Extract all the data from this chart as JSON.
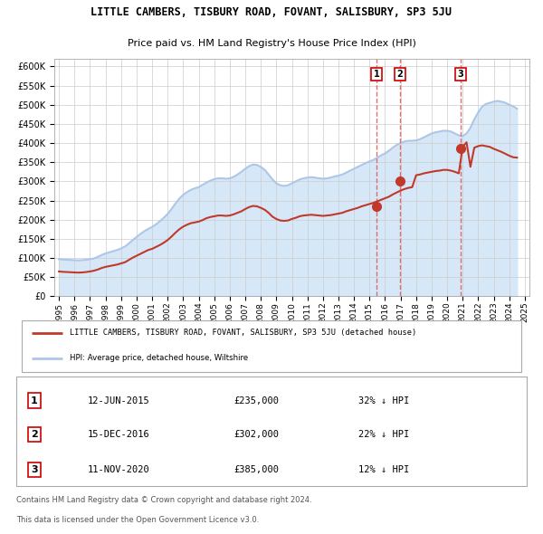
{
  "title": "LITTLE CAMBERS, TISBURY ROAD, FOVANT, SALISBURY, SP3 5JU",
  "subtitle": "Price paid vs. HM Land Registry's House Price Index (HPI)",
  "legend_line1": "LITTLE CAMBERS, TISBURY ROAD, FOVANT, SALISBURY, SP3 5JU (detached house)",
  "legend_line2": "HPI: Average price, detached house, Wiltshire",
  "footer1": "Contains HM Land Registry data © Crown copyright and database right 2024.",
  "footer2": "This data is licensed under the Open Government Licence v3.0.",
  "transactions": [
    {
      "num": "1",
      "date": "12-JUN-2015",
      "price": "£235,000",
      "pct": "32% ↓ HPI",
      "year": 2015.45,
      "price_val": 235000
    },
    {
      "num": "2",
      "date": "15-DEC-2016",
      "price": "£302,000",
      "pct": "22% ↓ HPI",
      "year": 2016.96,
      "price_val": 302000
    },
    {
      "num": "3",
      "date": "11-NOV-2020",
      "price": "£385,000",
      "pct": "12% ↓ HPI",
      "year": 2020.87,
      "price_val": 385000
    }
  ],
  "ylim": [
    0,
    620000
  ],
  "yticks": [
    0,
    50000,
    100000,
    150000,
    200000,
    250000,
    300000,
    350000,
    400000,
    450000,
    500000,
    550000,
    600000
  ],
  "xlim": [
    1994.7,
    2025.3
  ],
  "hpi_color": "#aec6e8",
  "hpi_fill": "#d6e8f7",
  "price_color": "#c0392b",
  "vline_color": "#e06060",
  "marker_color": "#c0392b",
  "hpi_data_years": [
    1995.0,
    1995.25,
    1995.5,
    1995.75,
    1996.0,
    1996.25,
    1996.5,
    1996.75,
    1997.0,
    1997.25,
    1997.5,
    1997.75,
    1998.0,
    1998.25,
    1998.5,
    1998.75,
    1999.0,
    1999.25,
    1999.5,
    1999.75,
    2000.0,
    2000.25,
    2000.5,
    2000.75,
    2001.0,
    2001.25,
    2001.5,
    2001.75,
    2002.0,
    2002.25,
    2002.5,
    2002.75,
    2003.0,
    2003.25,
    2003.5,
    2003.75,
    2004.0,
    2004.25,
    2004.5,
    2004.75,
    2005.0,
    2005.25,
    2005.5,
    2005.75,
    2006.0,
    2006.25,
    2006.5,
    2006.75,
    2007.0,
    2007.25,
    2007.5,
    2007.75,
    2008.0,
    2008.25,
    2008.5,
    2008.75,
    2009.0,
    2009.25,
    2009.5,
    2009.75,
    2010.0,
    2010.25,
    2010.5,
    2010.75,
    2011.0,
    2011.25,
    2011.5,
    2011.75,
    2012.0,
    2012.25,
    2012.5,
    2012.75,
    2013.0,
    2013.25,
    2013.5,
    2013.75,
    2014.0,
    2014.25,
    2014.5,
    2014.75,
    2015.0,
    2015.25,
    2015.5,
    2015.75,
    2016.0,
    2016.25,
    2016.5,
    2016.75,
    2017.0,
    2017.25,
    2017.5,
    2017.75,
    2018.0,
    2018.25,
    2018.5,
    2018.75,
    2019.0,
    2019.25,
    2019.5,
    2019.75,
    2020.0,
    2020.25,
    2020.5,
    2020.75,
    2021.0,
    2021.25,
    2021.5,
    2021.75,
    2022.0,
    2022.25,
    2022.5,
    2022.75,
    2023.0,
    2023.25,
    2023.5,
    2023.75,
    2024.0,
    2024.25,
    2024.5
  ],
  "hpi_data_values": [
    97000,
    96000,
    95500,
    95000,
    94500,
    94000,
    94500,
    95500,
    97000,
    99000,
    103000,
    108000,
    112000,
    115000,
    118000,
    121000,
    125000,
    130000,
    138000,
    147000,
    155000,
    163000,
    170000,
    176000,
    181000,
    188000,
    196000,
    205000,
    215000,
    228000,
    242000,
    255000,
    265000,
    272000,
    278000,
    282000,
    285000,
    291000,
    297000,
    302000,
    306000,
    308000,
    308000,
    307000,
    308000,
    312000,
    318000,
    325000,
    333000,
    340000,
    344000,
    343000,
    338000,
    330000,
    318000,
    305000,
    295000,
    290000,
    288000,
    290000,
    295000,
    300000,
    305000,
    308000,
    310000,
    311000,
    310000,
    308000,
    307000,
    308000,
    310000,
    313000,
    315000,
    318000,
    323000,
    328000,
    333000,
    338000,
    343000,
    348000,
    352000,
    356000,
    362000,
    368000,
    373000,
    380000,
    388000,
    395000,
    400000,
    404000,
    406000,
    406000,
    407000,
    410000,
    415000,
    420000,
    425000,
    428000,
    430000,
    432000,
    432000,
    430000,
    425000,
    420000,
    418000,
    425000,
    440000,
    462000,
    480000,
    495000,
    502000,
    505000,
    508000,
    510000,
    508000,
    505000,
    500000,
    496000,
    490000
  ],
  "price_data_years": [
    1995.0,
    1995.25,
    1995.5,
    1995.75,
    1996.0,
    1996.25,
    1996.5,
    1996.75,
    1997.0,
    1997.25,
    1997.5,
    1997.75,
    1998.0,
    1998.25,
    1998.5,
    1998.75,
    1999.0,
    1999.25,
    1999.5,
    1999.75,
    2000.0,
    2000.25,
    2000.5,
    2000.75,
    2001.0,
    2001.25,
    2001.5,
    2001.75,
    2002.0,
    2002.25,
    2002.5,
    2002.75,
    2003.0,
    2003.25,
    2003.5,
    2003.75,
    2004.0,
    2004.25,
    2004.5,
    2004.75,
    2005.0,
    2005.25,
    2005.5,
    2005.75,
    2006.0,
    2006.25,
    2006.5,
    2006.75,
    2007.0,
    2007.25,
    2007.5,
    2007.75,
    2008.0,
    2008.25,
    2008.5,
    2008.75,
    2009.0,
    2009.25,
    2009.5,
    2009.75,
    2010.0,
    2010.25,
    2010.5,
    2010.75,
    2011.0,
    2011.25,
    2011.5,
    2011.75,
    2012.0,
    2012.25,
    2012.5,
    2012.75,
    2013.0,
    2013.25,
    2013.5,
    2013.75,
    2014.0,
    2014.25,
    2014.5,
    2014.75,
    2015.0,
    2015.25,
    2015.5,
    2015.75,
    2016.0,
    2016.25,
    2016.5,
    2016.75,
    2017.0,
    2017.25,
    2017.5,
    2017.75,
    2018.0,
    2018.25,
    2018.5,
    2018.75,
    2019.0,
    2019.25,
    2019.5,
    2019.75,
    2020.0,
    2020.25,
    2020.5,
    2020.75,
    2021.0,
    2021.25,
    2021.5,
    2021.75,
    2022.0,
    2022.25,
    2022.5,
    2022.75,
    2023.0,
    2023.25,
    2023.5,
    2023.75,
    2024.0,
    2024.25,
    2024.5
  ],
  "price_data_values": [
    65000,
    64000,
    63500,
    63000,
    62500,
    62000,
    62500,
    63500,
    65000,
    67000,
    70000,
    74000,
    77000,
    79000,
    81000,
    83000,
    86000,
    89000,
    95000,
    101000,
    106000,
    111000,
    116000,
    121000,
    124000,
    129000,
    134000,
    140000,
    147000,
    156000,
    166000,
    175000,
    182000,
    187000,
    191000,
    193000,
    195000,
    199000,
    204000,
    207000,
    209000,
    211000,
    211000,
    210000,
    211000,
    214000,
    218000,
    222000,
    228000,
    233000,
    236000,
    235000,
    231000,
    226000,
    218000,
    208000,
    202000,
    198000,
    197000,
    198000,
    202000,
    205000,
    209000,
    211000,
    212000,
    213000,
    212000,
    211000,
    210000,
    211000,
    212000,
    214000,
    216000,
    218000,
    222000,
    225000,
    228000,
    231000,
    235000,
    238000,
    241000,
    244000,
    248000,
    252000,
    256000,
    260000,
    266000,
    271000,
    276000,
    280000,
    283000,
    285000,
    316000,
    318000,
    321000,
    323000,
    325000,
    327000,
    328000,
    330000,
    330000,
    328000,
    325000,
    321000,
    390000,
    402000,
    338000,
    388000,
    392000,
    394000,
    392000,
    390000,
    385000,
    381000,
    377000,
    372000,
    367000,
    363000,
    362000
  ]
}
